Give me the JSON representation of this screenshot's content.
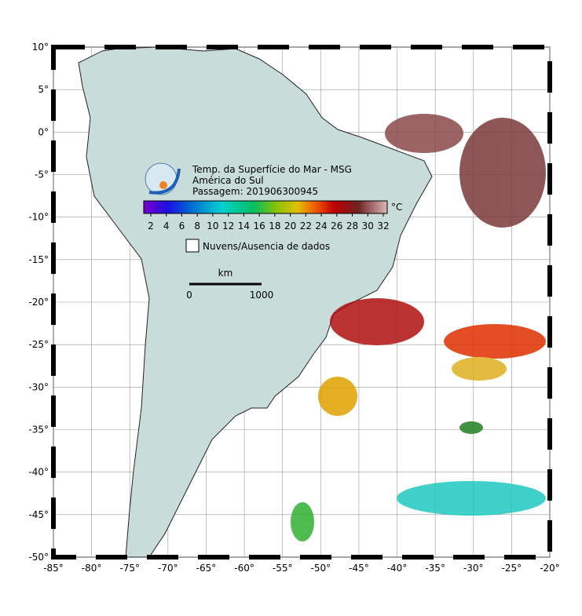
{
  "map": {
    "title_lines": [
      "Temp. da Superfície do Mar - MSG",
      "América do Sul",
      "Passagem: 201906300945"
    ],
    "lon_ticks": [
      {
        "value": -85,
        "label": "-85°"
      },
      {
        "value": -80,
        "label": "-80°"
      },
      {
        "value": -75,
        "label": "-75°"
      },
      {
        "value": -70,
        "label": "-70°"
      },
      {
        "value": -65,
        "label": "-65°"
      },
      {
        "value": -60,
        "label": "-60°"
      },
      {
        "value": -55,
        "label": "-55°"
      },
      {
        "value": -50,
        "label": "-50°"
      },
      {
        "value": -45,
        "label": "-45°"
      },
      {
        "value": -40,
        "label": "-40°"
      },
      {
        "value": -35,
        "label": "-35°"
      },
      {
        "value": -30,
        "label": "-30°"
      },
      {
        "value": -25,
        "label": "-25°"
      },
      {
        "value": -20,
        "label": "-20°"
      }
    ],
    "lat_ticks": [
      {
        "value": 10,
        "label": "10°"
      },
      {
        "value": 5,
        "label": "5°"
      },
      {
        "value": 0,
        "label": "0°"
      },
      {
        "value": -5,
        "label": "-5°"
      },
      {
        "value": -10,
        "label": "-10°"
      },
      {
        "value": -15,
        "label": "-15°"
      },
      {
        "value": -20,
        "label": "-20°"
      },
      {
        "value": -25,
        "label": "-25°"
      },
      {
        "value": -30,
        "label": "-30°"
      },
      {
        "value": -35,
        "label": "-35°"
      },
      {
        "value": -40,
        "label": "-40°"
      },
      {
        "value": -45,
        "label": "-45°"
      },
      {
        "value": -50,
        "label": "-50°"
      }
    ],
    "colorbar": {
      "unit": "°C",
      "ticks": [
        2,
        4,
        6,
        8,
        10,
        12,
        14,
        16,
        18,
        20,
        22,
        24,
        26,
        28,
        30,
        32
      ]
    },
    "legend": "Nuvens/Ausencia de dados",
    "scale_bar": {
      "unit": "km",
      "start": "0",
      "end": "1000"
    }
  }
}
